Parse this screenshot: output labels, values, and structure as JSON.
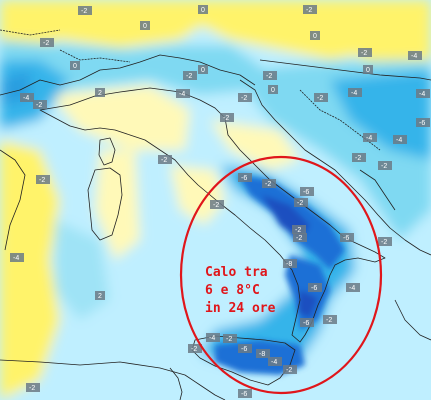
{
  "map": {
    "annotation": {
      "lines": [
        "Calo tra",
        "6 e 8°C",
        "in 24 ore"
      ],
      "color": "#e0161b"
    },
    "colors": {
      "sea_base": "#bfefff",
      "warm": "#fff36a",
      "warm_pale": "#fff9b8",
      "cold_light": "#7fd9f2",
      "cold_mid": "#35b4ea",
      "cold_deep": "#1f6fd6",
      "cold_darkest": "#1a4fc0",
      "borders": "#222222",
      "ellipse": "#e0161b"
    },
    "value_labels": [
      {
        "id": "l1",
        "text": "-2"
      },
      {
        "id": "l2",
        "text": "-2"
      },
      {
        "id": "l3",
        "text": "0"
      },
      {
        "id": "l4",
        "text": "-2"
      },
      {
        "id": "l5",
        "text": "0"
      },
      {
        "id": "l6",
        "text": "-4"
      },
      {
        "id": "l7",
        "text": "0"
      },
      {
        "id": "l8",
        "text": "2"
      },
      {
        "id": "l9",
        "text": "-2"
      },
      {
        "id": "l10",
        "text": "0"
      },
      {
        "id": "l11",
        "text": "-2"
      },
      {
        "id": "l12",
        "text": "-4"
      },
      {
        "id": "l13",
        "text": "0"
      },
      {
        "id": "l14",
        "text": "-2"
      },
      {
        "id": "l15",
        "text": "0"
      },
      {
        "id": "l16",
        "text": "-4"
      },
      {
        "id": "l17",
        "text": "-2"
      },
      {
        "id": "l18",
        "text": "0"
      },
      {
        "id": "l19",
        "text": "-2"
      },
      {
        "id": "l20",
        "text": "-4"
      },
      {
        "id": "l21",
        "text": "-6"
      },
      {
        "id": "l22",
        "text": "-2"
      },
      {
        "id": "l23",
        "text": "-4"
      },
      {
        "id": "l24",
        "text": "-2"
      },
      {
        "id": "l25",
        "text": "-6"
      },
      {
        "id": "l26",
        "text": "-2"
      },
      {
        "id": "l27",
        "text": "-2"
      },
      {
        "id": "l28",
        "text": "-2"
      },
      {
        "id": "l29",
        "text": "-6"
      },
      {
        "id": "l30",
        "text": "-2"
      },
      {
        "id": "l31",
        "text": "-6"
      },
      {
        "id": "l32",
        "text": "-4"
      },
      {
        "id": "l33",
        "text": "-2"
      },
      {
        "id": "l34",
        "text": "-2"
      },
      {
        "id": "l35",
        "text": "-4"
      },
      {
        "id": "l36",
        "text": "-8"
      },
      {
        "id": "l37",
        "text": "-6"
      },
      {
        "id": "l38",
        "text": "-2"
      },
      {
        "id": "l39",
        "text": "-6"
      },
      {
        "id": "l40",
        "text": "-2"
      },
      {
        "id": "l41",
        "text": "-4"
      },
      {
        "id": "l42",
        "text": "-2"
      },
      {
        "id": "l43",
        "text": "-2"
      },
      {
        "id": "l44",
        "text": "-4"
      },
      {
        "id": "l45",
        "text": "-2"
      },
      {
        "id": "l46",
        "text": "-2"
      },
      {
        "id": "l47",
        "text": "-6"
      },
      {
        "id": "l48",
        "text": "-8"
      },
      {
        "id": "l49",
        "text": "-4"
      },
      {
        "id": "l50",
        "text": "-2"
      },
      {
        "id": "l51",
        "text": "2"
      },
      {
        "id": "l52",
        "text": "-2"
      },
      {
        "id": "l53",
        "text": "-4"
      },
      {
        "id": "l54",
        "text": "-6"
      },
      {
        "id": "l55",
        "text": "-2"
      }
    ]
  }
}
